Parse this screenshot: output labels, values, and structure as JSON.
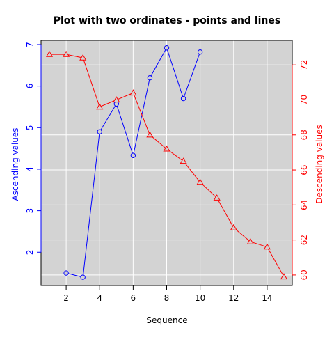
{
  "chart_data": {
    "type": "line",
    "title": "Plot with two ordinates - points and lines",
    "xlabel": "Sequence",
    "xlim": [
      0.5,
      15.5
    ],
    "x_ticks": [
      2,
      4,
      6,
      8,
      10,
      12,
      14
    ],
    "grid": true,
    "background": "#d3d3d3",
    "left_axis": {
      "label": "Ascending values",
      "color": "#0000ff",
      "ylim": [
        1.2,
        7.1
      ],
      "ticks": [
        2,
        3,
        4,
        5,
        6,
        7
      ]
    },
    "right_axis": {
      "label": "Descending values",
      "color": "#ff0000",
      "ylim": [
        59.4,
        73.4
      ],
      "ticks": [
        60,
        62,
        64,
        66,
        68,
        70,
        72
      ]
    },
    "series": [
      {
        "axis": "left",
        "color": "#0000ff",
        "marker": "circle",
        "x": [
          2,
          3,
          4,
          5,
          6,
          7,
          8,
          9,
          10
        ],
        "values": [
          1.5,
          1.4,
          4.9,
          5.57,
          4.33,
          6.2,
          6.92,
          5.7,
          6.82
        ]
      },
      {
        "axis": "right",
        "color": "#ff0000",
        "marker": "triangle",
        "x": [
          1,
          2,
          3,
          4,
          5,
          6,
          7,
          8,
          9,
          10,
          11,
          12,
          13,
          14,
          15
        ],
        "values": [
          72.6,
          72.6,
          72.4,
          69.6,
          70.0,
          70.4,
          68.0,
          67.2,
          66.5,
          65.3,
          64.4,
          62.7,
          61.9,
          61.6,
          59.9
        ]
      }
    ]
  }
}
